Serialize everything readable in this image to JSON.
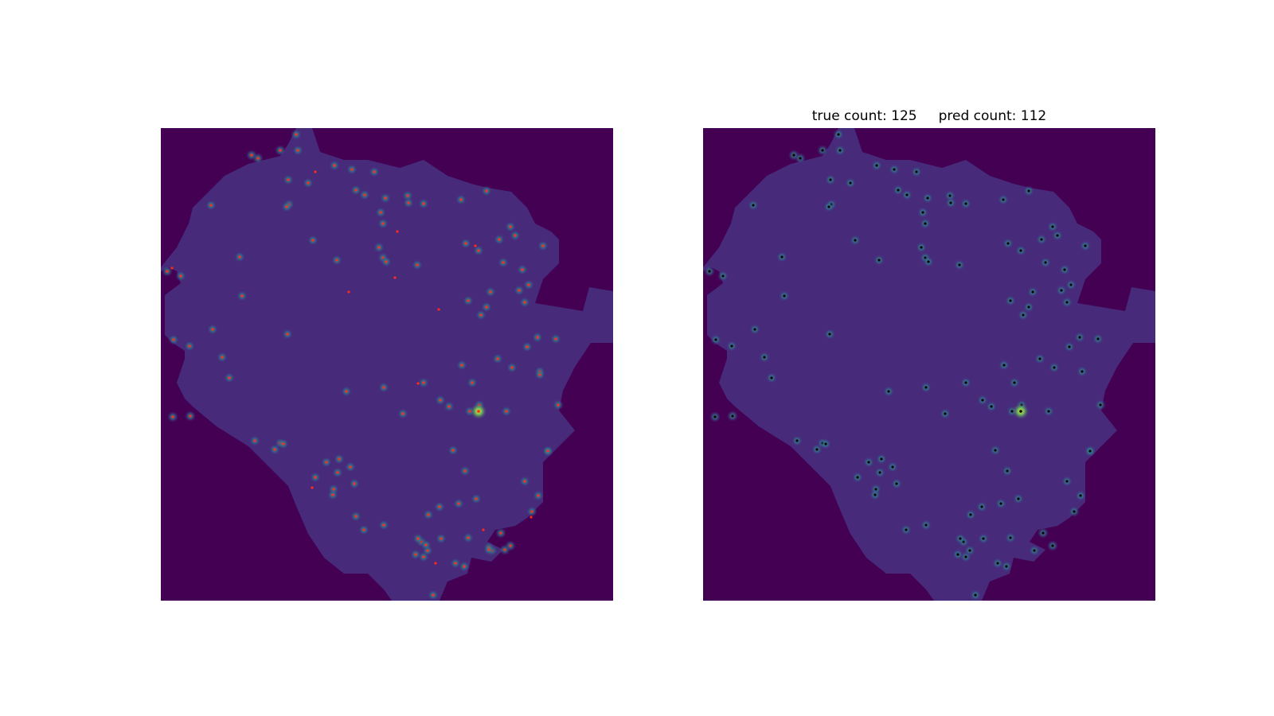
{
  "figure": {
    "title": "true count: 125     pred count: 112"
  },
  "panels": [
    {
      "name": "left",
      "content": "density map with red true-point markers"
    },
    {
      "name": "right",
      "content": "density map with dark predicted-point markers"
    }
  ],
  "colors": {
    "background": "#440154",
    "tissue": "#472a7a",
    "glow_inner": "#3aa58f",
    "glow_outer": "#31688e",
    "hot": "#fde725",
    "true_marker": "#ff2a1a",
    "pred_marker": "#000000"
  }
}
